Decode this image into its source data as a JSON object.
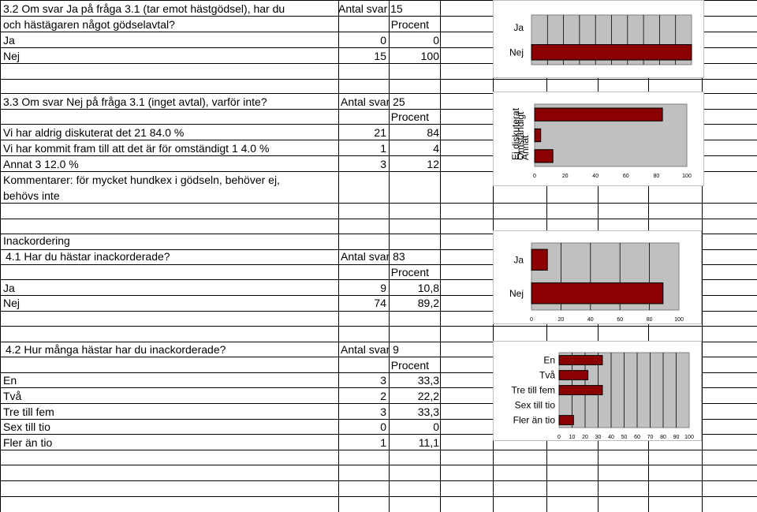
{
  "colors": {
    "bar": "#8b0000",
    "plot_bg": "#c0c0c0",
    "grid": "#000000"
  },
  "sections": {
    "s32": {
      "title_line1": "3.2 Om svar Ja på fråga 3.1 (tar emot hästgödsel), har du",
      "title_line2": "och hästägaren något gödselavtal?",
      "antal": "Antal svar 15",
      "procent": "Procent",
      "rows": [
        {
          "label": "Ja",
          "count": "0",
          "pct": "0"
        },
        {
          "label": "Nej",
          "count": "15",
          "pct": "100"
        }
      ]
    },
    "s33": {
      "title": "3.3 Om svar Nej på fråga 3.1 (inget avtal), varför inte?",
      "antal": "Antal svar 25",
      "procent": "Procent",
      "rows": [
        {
          "label": "Vi har aldrig diskuterat det 21 84.0 %",
          "count": "21",
          "pct": "84"
        },
        {
          "label": "Vi har kommit fram till att det är för omständigt 1 4.0 %",
          "count": "1",
          "pct": "4"
        },
        {
          "label": "Annat 3 12.0 %",
          "count": "3",
          "pct": "12"
        }
      ],
      "comment_line1": "Kommentarer: för mycket hundkex i gödseln, behöver ej,",
      "comment_line2": "behövs inte"
    },
    "s4": {
      "heading": "Inackordering"
    },
    "s41": {
      "title": "4.1 Har du hästar inackorderade?",
      "antal": "Antal svar 83",
      "procent": "Procent",
      "rows": [
        {
          "label": "Ja",
          "count": "9",
          "pct": "10,8"
        },
        {
          "label": "Nej",
          "count": "74",
          "pct": "89,2"
        }
      ]
    },
    "s42": {
      "title": "4.2 Hur många hästar har du inackorderade?",
      "antal": "Antal svar 9",
      "procent": "Procent",
      "rows": [
        {
          "label": "En",
          "count": "3",
          "pct": "33,3"
        },
        {
          "label": "Två",
          "count": "2",
          "pct": "22,2"
        },
        {
          "label": "Tre till fem",
          "count": "3",
          "pct": "33,3"
        },
        {
          "label": "Sex till tio",
          "count": "0",
          "pct": "0"
        },
        {
          "label": "Fler än tio",
          "count": "1",
          "pct": "11,1"
        }
      ]
    }
  },
  "chart_data": [
    {
      "type": "bar",
      "orientation": "horizontal",
      "categories": [
        "Ja",
        "Nej"
      ],
      "values": [
        0,
        100
      ],
      "xlim": [
        0,
        100
      ],
      "ticks": [],
      "grid": true
    },
    {
      "type": "bar",
      "orientation": "horizontal",
      "categories": [
        "Ej diskuterat",
        "Omständigt",
        "Annat"
      ],
      "values": [
        84,
        4,
        12
      ],
      "xlim": [
        0,
        100
      ],
      "ticks": [
        "0",
        "20",
        "40",
        "60",
        "80",
        "100"
      ],
      "grid": false,
      "labels_overlapping": true
    },
    {
      "type": "bar",
      "orientation": "horizontal",
      "categories": [
        "Ja",
        "Nej"
      ],
      "values": [
        10.8,
        89.2
      ],
      "xlim": [
        0,
        100
      ],
      "ticks": [
        "0",
        "20",
        "40",
        "60",
        "80",
        "100"
      ],
      "grid": true
    },
    {
      "type": "bar",
      "orientation": "horizontal",
      "categories": [
        "En",
        "Två",
        "Tre till fem",
        "Sex till tio",
        "Fler än tio"
      ],
      "values": [
        33.3,
        22.2,
        33.3,
        0,
        11.1
      ],
      "xlim": [
        0,
        100
      ],
      "ticks": [
        "0",
        "10",
        "20",
        "30",
        "40",
        "50",
        "60",
        "70",
        "80",
        "90",
        "100"
      ],
      "grid": true
    }
  ]
}
